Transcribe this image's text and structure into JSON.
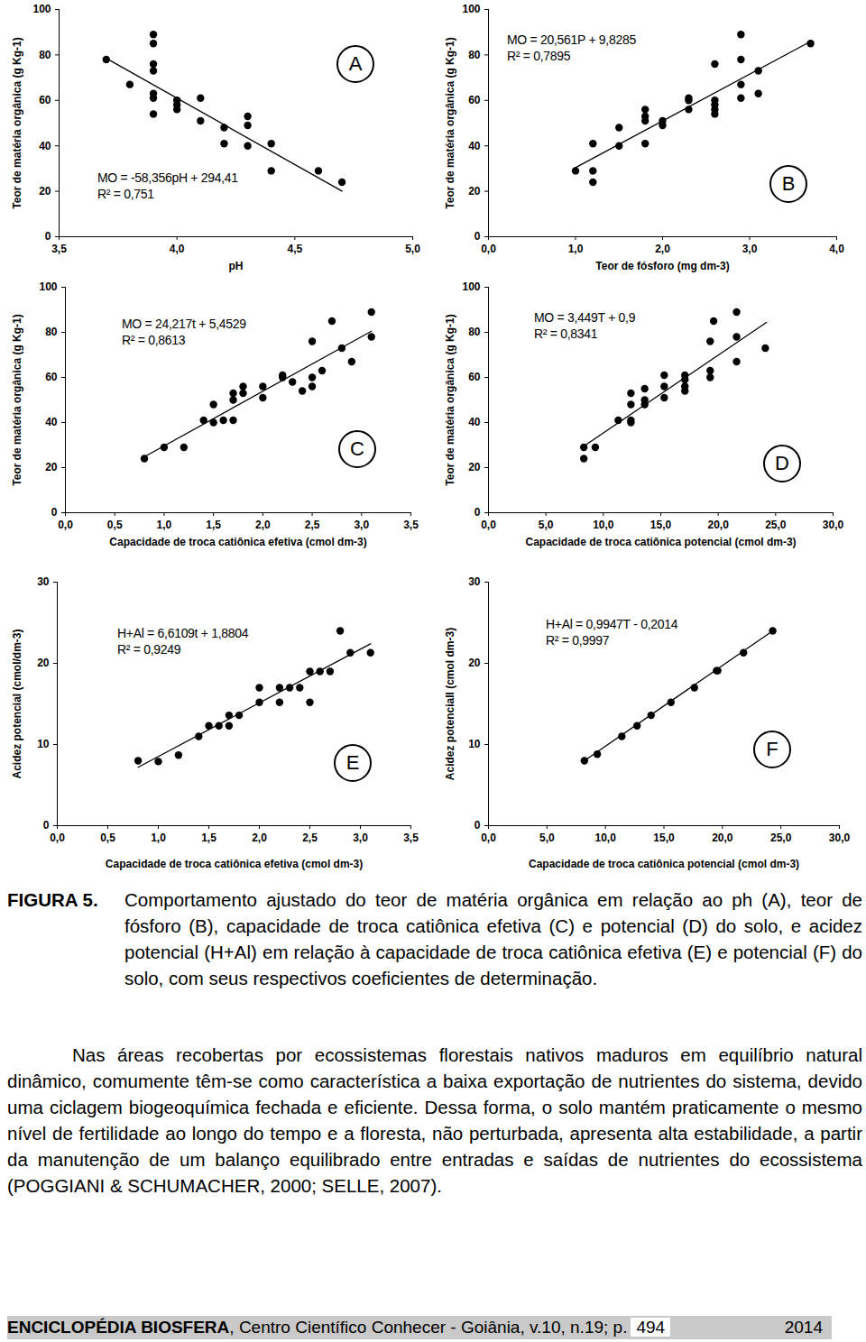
{
  "chart_data": [
    {
      "type": "scatter",
      "panel": "A",
      "color": "#000000",
      "xlabel": "pH",
      "ylabel": "Teor de matéria orgânica (g Kg-1)",
      "xlim": [
        3.5,
        5.0
      ],
      "ylim": [
        0,
        100
      ],
      "xticks": [
        {
          "value": 3.5,
          "label": "3,5"
        },
        {
          "value": 4.0,
          "label": "4,0"
        },
        {
          "value": 4.5,
          "label": "4,5"
        },
        {
          "value": 5.0,
          "label": "5,0"
        }
      ],
      "yticks": [
        0,
        20,
        40,
        60,
        80,
        100
      ],
      "x": [
        3.7,
        3.8,
        3.9,
        3.9,
        3.9,
        3.9,
        3.9,
        3.9,
        3.9,
        4.0,
        4.0,
        4.0,
        4.1,
        4.1,
        4.2,
        4.2,
        4.3,
        4.3,
        4.3,
        4.4,
        4.4,
        4.6,
        4.7
      ],
      "y": [
        78,
        67,
        89,
        85,
        76,
        73,
        63,
        61,
        54,
        60,
        58,
        56,
        61,
        51,
        48,
        41,
        53,
        49,
        40,
        41,
        29,
        29,
        24
      ],
      "fit_x": [
        3.7,
        4.7
      ],
      "fit_y": [
        78.5,
        20.1
      ],
      "annotations": [
        "MO = -58,356pH + 294,41",
        "R² = 0,751"
      ]
    },
    {
      "type": "scatter",
      "panel": "B",
      "color": "#000000",
      "xlabel": "Teor de fósforo (mg dm-3)",
      "ylabel": "Teor de matéria orgânica (g Kg-1)",
      "xlim": [
        0,
        4.0
      ],
      "ylim": [
        0,
        100
      ],
      "xticks": [
        {
          "value": 0,
          "label": "0,0"
        },
        {
          "value": 1.0,
          "label": "1,0"
        },
        {
          "value": 2.0,
          "label": "2,0"
        },
        {
          "value": 3.0,
          "label": "3,0"
        },
        {
          "value": 4.0,
          "label": "4,0"
        }
      ],
      "yticks": [
        0,
        20,
        40,
        60,
        80,
        100
      ],
      "x": [
        1.0,
        1.2,
        1.2,
        1.2,
        1.5,
        1.5,
        1.8,
        1.8,
        1.8,
        1.8,
        2.0,
        2.0,
        2.3,
        2.3,
        2.3,
        2.6,
        2.6,
        2.6,
        2.6,
        2.6,
        2.9,
        2.9,
        2.9,
        2.9,
        3.1,
        3.1,
        3.7
      ],
      "y": [
        29,
        41,
        29,
        24,
        48,
        40,
        56,
        53,
        51,
        41,
        51,
        49,
        61,
        60,
        56,
        76,
        60,
        58,
        56,
        54,
        89,
        78,
        67,
        61,
        73,
        63,
        85
      ],
      "fit_x": [
        1.0,
        3.7
      ],
      "fit_y": [
        30.4,
        85.9
      ],
      "annotations": [
        "MO = 20,561P + 9,8285",
        "R² = 0,7895"
      ]
    },
    {
      "type": "scatter",
      "panel": "C",
      "color": "#000000",
      "xlabel": "Capacidade de troca catiônica efetiva (cmol dm-3)",
      "ylabel": "Teor de matéria orgânica (g Kg-1)",
      "xlim": [
        0,
        3.5
      ],
      "ylim": [
        0,
        100
      ],
      "xticks": [
        {
          "value": 0,
          "label": "0,0"
        },
        {
          "value": 0.5,
          "label": "0,5"
        },
        {
          "value": 1.0,
          "label": "1,0"
        },
        {
          "value": 1.5,
          "label": "1,5"
        },
        {
          "value": 2.0,
          "label": "2,0"
        },
        {
          "value": 2.5,
          "label": "2,5"
        },
        {
          "value": 3.0,
          "label": "3,0"
        },
        {
          "value": 3.5,
          "label": "3,5"
        }
      ],
      "yticks": [
        0,
        20,
        40,
        60,
        80,
        100
      ],
      "x": [
        0.8,
        1.0,
        1.2,
        1.4,
        1.5,
        1.5,
        1.6,
        1.7,
        1.7,
        1.7,
        1.8,
        1.8,
        2.0,
        2.0,
        2.2,
        2.2,
        2.3,
        2.4,
        2.5,
        2.5,
        2.5,
        2.6,
        2.7,
        2.8,
        2.9,
        3.1,
        3.1
      ],
      "y": [
        24,
        29,
        29,
        41,
        48,
        40,
        41,
        41,
        50,
        53,
        56,
        53,
        56,
        51,
        61,
        60,
        58,
        54,
        76,
        60,
        56,
        63,
        85,
        73,
        67,
        89,
        78
      ],
      "fit_x": [
        0.8,
        3.1
      ],
      "fit_y": [
        24.8,
        80.5
      ],
      "annotations": [
        "MO = 24,217t + 5,4529",
        "R² = 0,8613"
      ]
    },
    {
      "type": "scatter",
      "panel": "D",
      "color": "#000000",
      "xlabel": "Capacidade de troca catiônica potencial (cmol dm-3)",
      "ylabel": "Teor de matéria orgânica (g Kg-1)",
      "xlim": [
        0,
        30.0
      ],
      "ylim": [
        0,
        100
      ],
      "xticks": [
        {
          "value": 0,
          "label": "0,0"
        },
        {
          "value": 5.0,
          "label": "5,0"
        },
        {
          "value": 10.0,
          "label": "10,0"
        },
        {
          "value": 15.0,
          "label": "15,0"
        },
        {
          "value": 20.0,
          "label": "20,0"
        },
        {
          "value": 25.0,
          "label": "25,0"
        },
        {
          "value": 30.0,
          "label": "30,0"
        }
      ],
      "yticks": [
        0,
        20,
        40,
        60,
        80,
        100
      ],
      "x": [
        8.3,
        8.3,
        9.3,
        11.3,
        12.4,
        12.4,
        12.4,
        12.4,
        13.6,
        13.6,
        13.6,
        15.3,
        15.3,
        15.3,
        17.1,
        17.1,
        17.1,
        17.1,
        19.3,
        19.3,
        19.3,
        19.6,
        21.6,
        21.6,
        21.6,
        24.1
      ],
      "y": [
        29,
        24,
        29,
        41,
        53,
        48,
        41,
        40,
        55,
        50,
        48,
        61,
        56,
        51,
        61,
        59,
        56,
        54,
        76,
        63,
        60,
        85,
        89,
        78,
        67,
        73
      ],
      "fit_x": [
        8.3,
        24.2
      ],
      "fit_y": [
        29.5,
        84.4
      ],
      "annotations": [
        "MO = 3,449T + 0,9",
        "R² = 0,8341"
      ]
    },
    {
      "type": "scatter",
      "panel": "E",
      "color": "#000000",
      "xlabel": "Capacidade de troca catiônica efetiva (cmol dm-3)",
      "ylabel": "Acidez potencial (cmol/dm-3)",
      "xlim": [
        0,
        3.5
      ],
      "ylim": [
        0,
        30
      ],
      "xticks": [
        {
          "value": 0,
          "label": "0,0"
        },
        {
          "value": 0.5,
          "label": "0,5"
        },
        {
          "value": 1.0,
          "label": "1,0"
        },
        {
          "value": 1.5,
          "label": "1,5"
        },
        {
          "value": 2.0,
          "label": "2,0"
        },
        {
          "value": 2.5,
          "label": "2,5"
        },
        {
          "value": 3.0,
          "label": "3,0"
        },
        {
          "value": 3.5,
          "label": "3,5"
        }
      ],
      "yticks": [
        0,
        10,
        20,
        30
      ],
      "x": [
        0.8,
        1.0,
        1.2,
        1.4,
        1.5,
        1.6,
        1.7,
        1.7,
        1.8,
        2.0,
        2.0,
        2.2,
        2.2,
        2.3,
        2.4,
        2.5,
        2.5,
        2.6,
        2.7,
        2.8,
        2.9,
        3.1
      ],
      "y": [
        8,
        7.9,
        8.7,
        11,
        12.3,
        12.3,
        12.3,
        13.6,
        13.6,
        17,
        15.2,
        17,
        15.2,
        17,
        17,
        19,
        15.2,
        19,
        19,
        24,
        21.3,
        21.3
      ],
      "fit_x": [
        0.8,
        3.1
      ],
      "fit_y": [
        7.2,
        22.4
      ],
      "annotations": [
        "H+Al = 6,6109t + 1,8804",
        "R² = 0,9249"
      ]
    },
    {
      "type": "scatter",
      "panel": "F",
      "color": "#000000",
      "xlabel": "Capacidade de troca catiônica potencial (cmol dm-3)",
      "ylabel": "Acidez potenciall (cmol dm-3)",
      "xlim": [
        0,
        30.0
      ],
      "ylim": [
        0,
        30
      ],
      "xticks": [
        {
          "value": 0,
          "label": "0,0"
        },
        {
          "value": 5.0,
          "label": "5,0"
        },
        {
          "value": 10.0,
          "label": "10,0"
        },
        {
          "value": 15.0,
          "label": "15,0"
        },
        {
          "value": 20.0,
          "label": "20,0"
        },
        {
          "value": 25.0,
          "label": "25,0"
        },
        {
          "value": 30.0,
          "label": "30,0"
        }
      ],
      "yticks": [
        0,
        10,
        20,
        30
      ],
      "x": [
        8.2,
        9.3,
        11.4,
        12.7,
        13.9,
        15.6,
        17.6,
        19.5,
        19.6,
        21.8,
        24.3
      ],
      "y": [
        8,
        8.8,
        11,
        12.3,
        13.6,
        15.2,
        17,
        19.1,
        19.1,
        21.3,
        24
      ],
      "fit_x": [
        8.2,
        24.3
      ],
      "fit_y": [
        8.0,
        24.0
      ],
      "annotations": [
        "H+Al = 0,9947T - 0,2014",
        "R² = 0,9997"
      ]
    }
  ],
  "caption": {
    "label": "FIGURA 5.",
    "text": "Comportamento ajustado do teor de matéria orgânica em relação ao ph (A), teor de fósforo (B), capacidade de troca catiônica efetiva (C) e potencial (D) do solo, e acidez potencial (H+Al) em relação à capacidade de troca catiônica efetiva (E) e potencial (F) do solo, com seus respectivos coeficientes de determinação."
  },
  "paragraph": "Nas áreas recobertas por ecossistemas florestais nativos maduros em equilíbrio natural dinâmico, comumente têm-se como característica a baixa exportação de nutrientes do sistema, devido uma ciclagem biogeoquímica fechada e eficiente. Dessa forma, o solo mantém praticamente o mesmo nível de fertilidade ao longo do tempo e a floresta, não perturbada, apresenta alta estabilidade, a partir da manutenção de um balanço equilibrado entre entradas e saídas de nutrientes do ecossistema (POGGIANI & SCHUMACHER, 2000; SELLE, 2007).",
  "footer": {
    "journal": "ENCICLOPÉDIA BIOSFERA",
    "rest": ", Centro Científico Conhecer - Goiânia, v.10, n.19; p.",
    "page": "494",
    "year": "2014"
  }
}
